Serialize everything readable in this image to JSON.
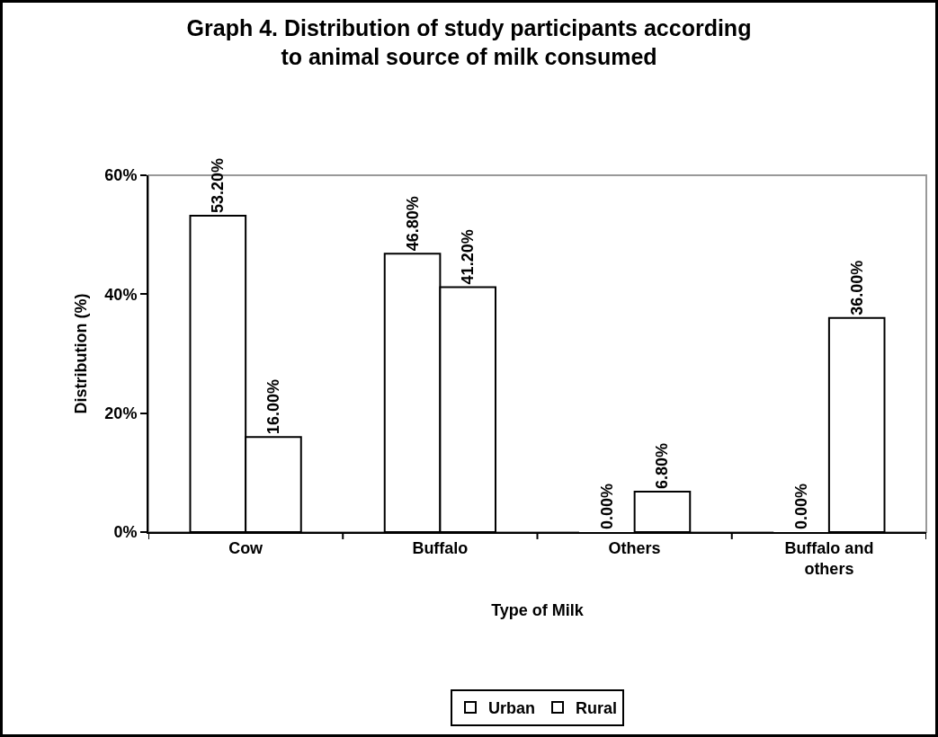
{
  "chart_data": {
    "type": "bar",
    "title": "Graph 4. Distribution of study participants according to animal source of milk consumed",
    "xlabel": "Type of Milk",
    "ylabel": "Distribution (%)",
    "categories": [
      "Cow",
      "Buffalo",
      "Others",
      "Buffalo and others"
    ],
    "series": [
      {
        "name": "Urban",
        "color": "#ffffff",
        "values": [
          53.2,
          46.8,
          0,
          0
        ],
        "value_labels": [
          "53.20%",
          "46.80%",
          "0.00%",
          "0.00%"
        ]
      },
      {
        "name": "Rural",
        "color": "#ffffff",
        "values": [
          16,
          41.2,
          6.8,
          36
        ],
        "value_labels": [
          "16.00%",
          "41.20%",
          "6.80%",
          "36.00%"
        ]
      }
    ],
    "ylim": [
      0,
      60
    ],
    "yticks": [
      {
        "value": 0,
        "label": "0%"
      },
      {
        "value": 20,
        "label": "20%"
      },
      {
        "value": 40,
        "label": "40%"
      },
      {
        "value": 60,
        "label": "60%"
      }
    ],
    "grid": false,
    "legend": "bottom"
  }
}
